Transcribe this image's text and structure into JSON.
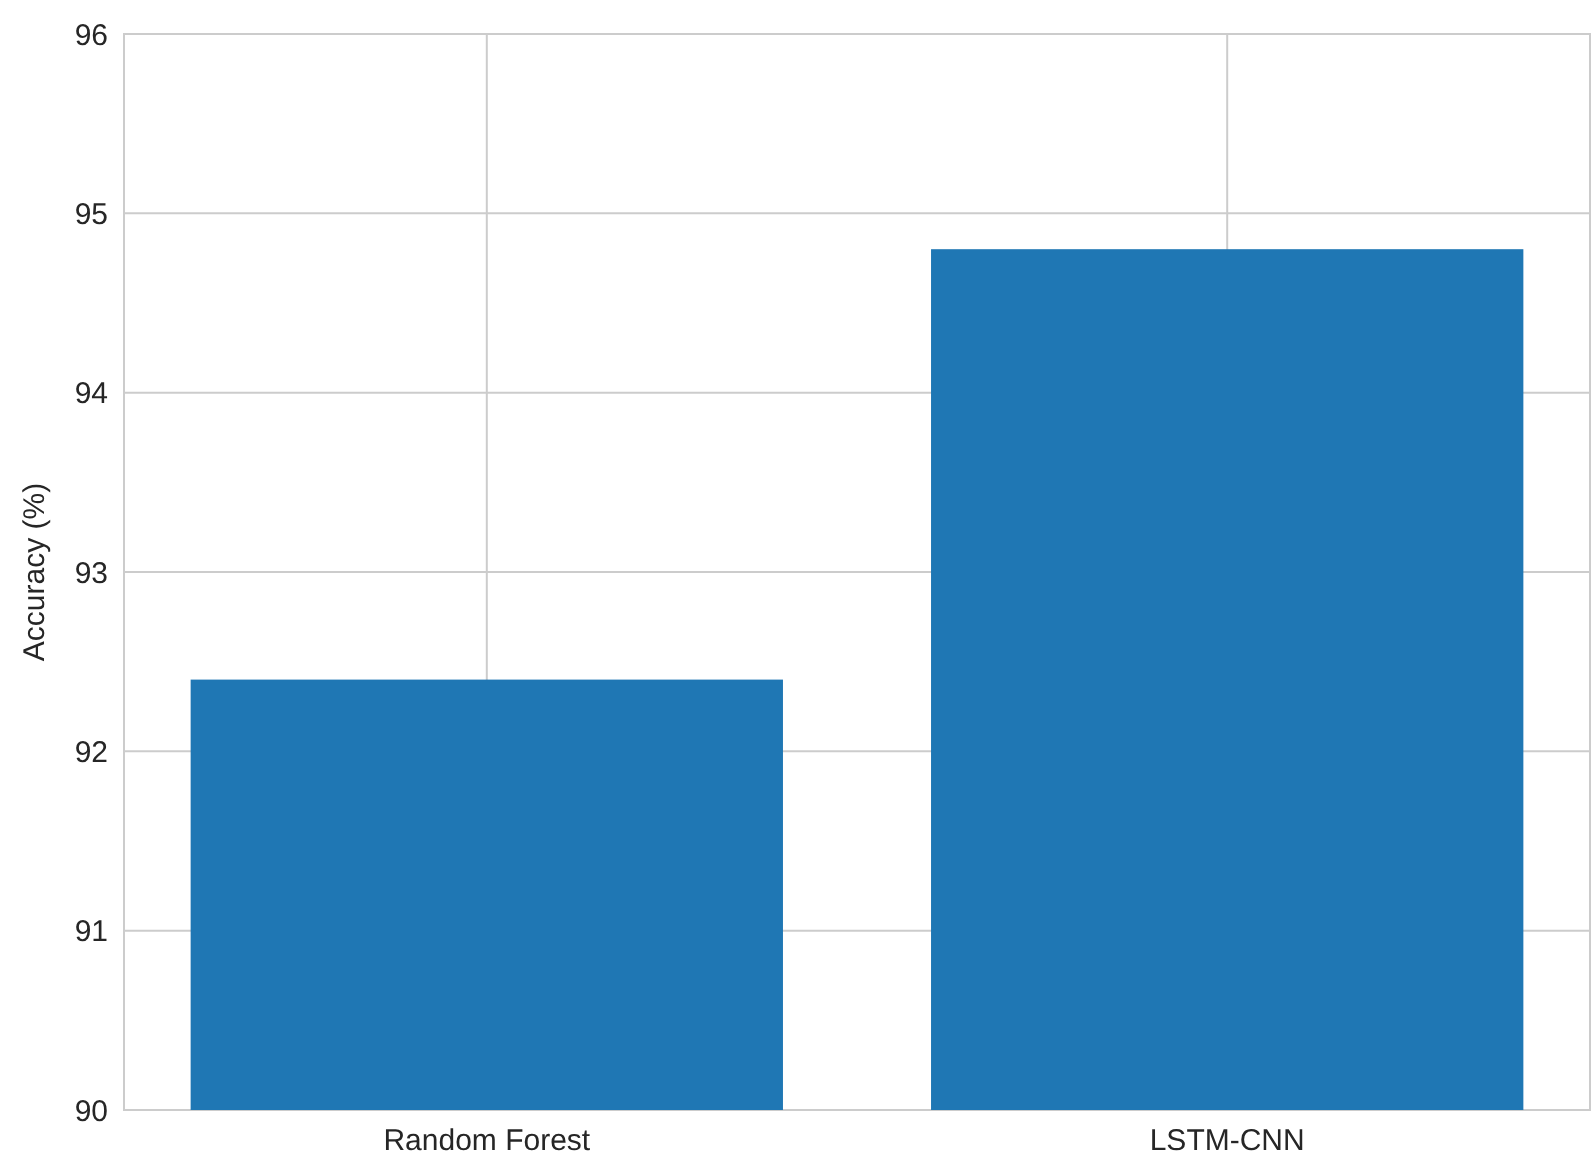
{
  "chart_data": {
    "type": "bar",
    "ylabel": "Accuracy (%)",
    "categories": [
      "Random Forest",
      "LSTM-CNN"
    ],
    "values": [
      92.4,
      94.8
    ],
    "color": "#1f77b4",
    "ylim": [
      90,
      96
    ],
    "yticks": [
      90,
      91,
      92,
      93,
      94,
      95,
      96
    ],
    "grid": true
  }
}
